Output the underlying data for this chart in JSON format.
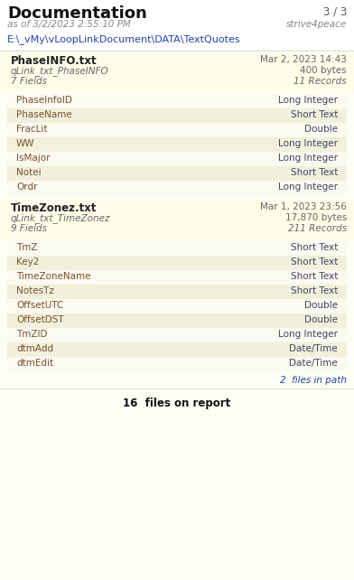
{
  "title": "Documentation",
  "page_info": "3 / 3",
  "date_line": "as of 3/2/2023 2:55:10 PM",
  "user": "strive4peace",
  "path": "E:\\_vMy\\vLoopLinkDocument\\DATA\\TextQuotes",
  "bg_color": "#FEFEF5",
  "white_bg": "#FFFFFF",
  "file_header_bg": "#FDFDE8",
  "row_alt_color": "#F0F0DC",
  "row_plain_color": "#FAFAF0",
  "files": [
    {
      "filename": "PhaseINFO.txt",
      "date": "Mar 2, 2023 14:43",
      "query": "qLink_txt_PhaseINFO",
      "size": "400 bytes",
      "fields": "7 Fields",
      "records": "11 Records",
      "field_list": [
        [
          "PhaseInfoID",
          "Long Integer"
        ],
        [
          "PhaseName",
          "Short Text"
        ],
        [
          "FracLit",
          "Double"
        ],
        [
          "WW",
          "Long Integer"
        ],
        [
          "IsMajor",
          "Long Integer"
        ],
        [
          "Notei",
          "Short Text"
        ],
        [
          "Ordr",
          "Long Integer"
        ]
      ]
    },
    {
      "filename": "TimeZonez.txt",
      "date": "Mar 1, 2023 23:56",
      "query": "qLink_txt_TimeZonez",
      "size": "17,870 bytes",
      "fields": "9 Fields",
      "records": "211 Records",
      "field_list": [
        [
          "TmZ",
          "Short Text"
        ],
        [
          "Key2",
          "Short Text"
        ],
        [
          "TimeZoneName",
          "Short Text"
        ],
        [
          "NotesTz",
          "Short Text"
        ],
        [
          "OffsetUTC",
          "Double"
        ],
        [
          "OffsetDST",
          "Double"
        ],
        [
          "TmZID",
          "Long Integer"
        ],
        [
          "dtmAdd",
          "Date/Time"
        ],
        [
          "dtmEdit",
          "Date/Time"
        ]
      ]
    }
  ],
  "files_in_path": "2  files in path",
  "files_on_report": "16  files on report",
  "title_color": "#111111",
  "page_color": "#555555",
  "date_color": "#888888",
  "path_color": "#2244AA",
  "filename_color": "#222222",
  "query_color": "#666666",
  "field_name_color": "#7B4F2E",
  "field_type_color": "#444466",
  "files_in_path_color": "#2244AA",
  "footer_color": "#111111",
  "sep_color": "#DDDDCC"
}
